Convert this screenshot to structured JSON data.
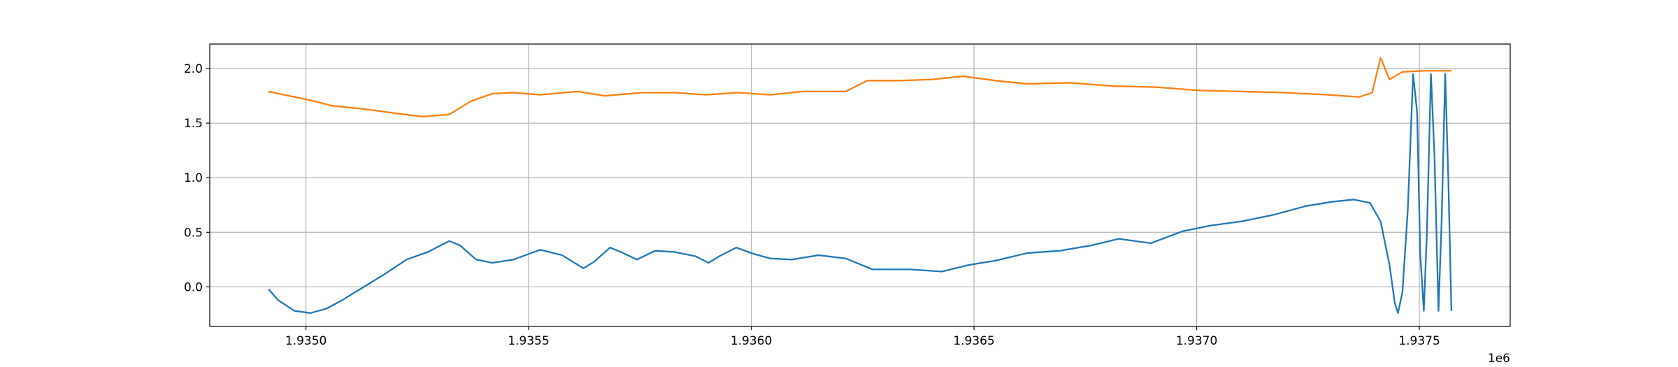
{
  "chart_data": {
    "type": "line",
    "x_offset_label": "1e6",
    "xlim": [
      1934784,
      1937704
    ],
    "ylim": [
      -0.363,
      2.225
    ],
    "xticks": [
      {
        "value": 1935000,
        "label": "1.9350"
      },
      {
        "value": 1935500,
        "label": "1.9355"
      },
      {
        "value": 1936000,
        "label": "1.9360"
      },
      {
        "value": 1936500,
        "label": "1.9365"
      },
      {
        "value": 1937000,
        "label": "1.9370"
      },
      {
        "value": 1937500,
        "label": "1.9375"
      }
    ],
    "yticks": [
      {
        "value": 0,
        "label": "0.0"
      },
      0.5,
      {
        "value": 1,
        "label": "1.0"
      },
      1.5,
      {
        "value": 2,
        "label": "2.0"
      }
    ],
    "grid": true,
    "series": [
      {
        "color": "#1f77b4",
        "x": [
          1934916,
          1934937,
          1934974,
          1935010,
          1935046,
          1935082,
          1935130,
          1935178,
          1935226,
          1935274,
          1935322,
          1935346,
          1935382,
          1935418,
          1935466,
          1935526,
          1935575,
          1935623,
          1935647,
          1935683,
          1935707,
          1935743,
          1935784,
          1935827,
          1935875,
          1935904,
          1935928,
          1935966,
          1936007,
          1936043,
          1936091,
          1936151,
          1936212,
          1936272,
          1936356,
          1936428,
          1936488,
          1936548,
          1936620,
          1936692,
          1936764,
          1936825,
          1936897,
          1936969,
          1937029,
          1937101,
          1937173,
          1937245,
          1937305,
          1937353,
          1937389,
          1937413,
          1937433,
          1937445,
          1937452,
          1937462,
          1937474,
          1937486,
          1937495,
          1937502,
          1937510,
          1937517,
          1937526,
          1937534,
          1937543,
          1937550,
          1937558,
          1937565,
          1937572
        ],
        "values": [
          -0.02,
          -0.12,
          -0.22,
          -0.24,
          -0.2,
          -0.12,
          0.0,
          0.12,
          0.25,
          0.32,
          0.42,
          0.38,
          0.25,
          0.22,
          0.25,
          0.34,
          0.29,
          0.17,
          0.23,
          0.36,
          0.32,
          0.25,
          0.33,
          0.32,
          0.28,
          0.22,
          0.28,
          0.36,
          0.3,
          0.26,
          0.25,
          0.29,
          0.26,
          0.16,
          0.16,
          0.14,
          0.2,
          0.24,
          0.31,
          0.33,
          0.38,
          0.44,
          0.4,
          0.51,
          0.56,
          0.6,
          0.66,
          0.74,
          0.78,
          0.8,
          0.77,
          0.6,
          0.2,
          -0.15,
          -0.24,
          -0.05,
          0.7,
          1.95,
          1.6,
          0.3,
          -0.22,
          0.5,
          1.95,
          1.2,
          -0.22,
          0.6,
          1.95,
          1.0,
          -0.22
        ]
      },
      {
        "color": "#ff7f0e",
        "x": [
          1934916,
          1934962,
          1935010,
          1935058,
          1935130,
          1935202,
          1935262,
          1935322,
          1935370,
          1935418,
          1935466,
          1935526,
          1935611,
          1935671,
          1935755,
          1935827,
          1935899,
          1935971,
          1936043,
          1936115,
          1936212,
          1936260,
          1936332,
          1936404,
          1936476,
          1936548,
          1936620,
          1936716,
          1936813,
          1936909,
          1937005,
          1937101,
          1937197,
          1937293,
          1937365,
          1937394,
          1937413,
          1937433,
          1937462,
          1937510,
          1937572
        ],
        "values": [
          1.79,
          1.75,
          1.71,
          1.66,
          1.63,
          1.59,
          1.56,
          1.58,
          1.7,
          1.77,
          1.78,
          1.76,
          1.79,
          1.75,
          1.78,
          1.78,
          1.76,
          1.78,
          1.76,
          1.79,
          1.79,
          1.89,
          1.89,
          1.9,
          1.93,
          1.89,
          1.86,
          1.87,
          1.84,
          1.83,
          1.8,
          1.79,
          1.78,
          1.76,
          1.74,
          1.78,
          2.1,
          1.9,
          1.97,
          1.98,
          1.98
        ]
      }
    ]
  }
}
